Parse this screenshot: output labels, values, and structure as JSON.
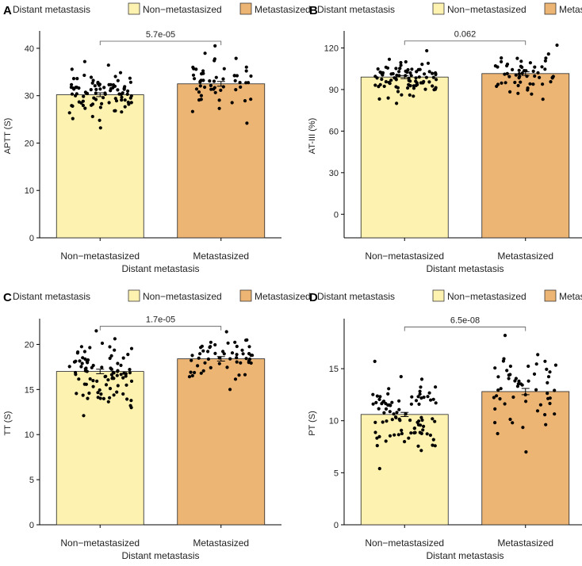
{
  "colors": {
    "non_metastasized": "#FDF2B0",
    "metastasized": "#EDB574",
    "bar_stroke": "#222222",
    "point": "#000000",
    "axis": "#000000",
    "text": "#222222"
  },
  "chart_data": [
    {
      "panel": "A",
      "type": "bar",
      "legend_title": "Distant metastasis",
      "categories": [
        "Non−metastasized",
        "Metastasized"
      ],
      "legend_entries": [
        "Non−metastasized",
        "Metastasized"
      ],
      "xlabel": "Distant metastasis",
      "ylabel": "APTT (S)",
      "values": [
        30.2,
        32.5
      ],
      "errors": [
        0.4,
        0.5
      ],
      "ylim": [
        0,
        43
      ],
      "yticks": [
        0,
        10,
        20,
        30,
        40
      ],
      "ytick_labels": [
        "0",
        "10",
        "20",
        "30",
        "40"
      ],
      "jitter_range": [
        [
          23.2,
          37.2
        ],
        [
          24.2,
          40.5
        ]
      ],
      "jitter_count": [
        90,
        55
      ],
      "annotation": "5.7e-05",
      "annotation_value": 41.5
    },
    {
      "panel": "B",
      "type": "bar",
      "legend_title": "Distant metastasis",
      "categories": [
        "Non−metastasized",
        "Metastasized"
      ],
      "legend_entries": [
        "Non−metastasized",
        "Metastasized"
      ],
      "xlabel": "Distant metastasis",
      "ylabel": "AT-III (%)",
      "values": [
        99,
        101.5
      ],
      "errors": [
        1.1,
        1.3
      ],
      "ylim": [
        -17,
        130
      ],
      "yticks": [
        0,
        30,
        60,
        90,
        120
      ],
      "ytick_labels": [
        "0",
        "30",
        "60",
        "90",
        "120"
      ],
      "jitter_range": [
        [
          80,
          118
        ],
        [
          83,
          122
        ]
      ],
      "jitter_count": [
        90,
        55
      ],
      "annotation": "0.062",
      "annotation_value": 125
    },
    {
      "panel": "C",
      "type": "bar",
      "legend_title": "Distant metastasis",
      "categories": [
        "Non−metastasized",
        "Metastasized"
      ],
      "legend_entries": [
        "Non−metastasized",
        "Metastasized"
      ],
      "xlabel": "Distant metastasis",
      "ylabel": "TT (S)",
      "values": [
        17.0,
        18.4
      ],
      "errors": [
        0.25,
        0.25
      ],
      "ylim": [
        0,
        22.5
      ],
      "yticks": [
        0,
        5,
        10,
        15,
        20
      ],
      "ytick_labels": [
        "0",
        "5",
        "10",
        "15",
        "20"
      ],
      "jitter_range": [
        [
          12.1,
          21.5
        ],
        [
          15.0,
          21.4
        ]
      ],
      "jitter_count": [
        90,
        55
      ],
      "annotation": "1.7e-05",
      "annotation_value": 22.0
    },
    {
      "panel": "D",
      "type": "bar",
      "legend_title": "Distant metastasis",
      "categories": [
        "Non−metastasized",
        "Metastasized"
      ],
      "legend_entries": [
        "Non−metastasized",
        "Metastasized"
      ],
      "xlabel": "Distant metastasis",
      "ylabel": "PT (S)",
      "values": [
        10.6,
        12.8
      ],
      "errors": [
        0.2,
        0.3
      ],
      "ylim": [
        0,
        19.5
      ],
      "yticks": [
        0,
        5,
        10,
        15
      ],
      "ytick_labels": [
        "0",
        "5",
        "10",
        "15"
      ],
      "jitter_range": [
        [
          5.4,
          15.7
        ],
        [
          7.0,
          18.2
        ]
      ],
      "jitter_count": [
        90,
        55
      ],
      "annotation": "6.5e-08",
      "annotation_value": 19.0
    }
  ]
}
